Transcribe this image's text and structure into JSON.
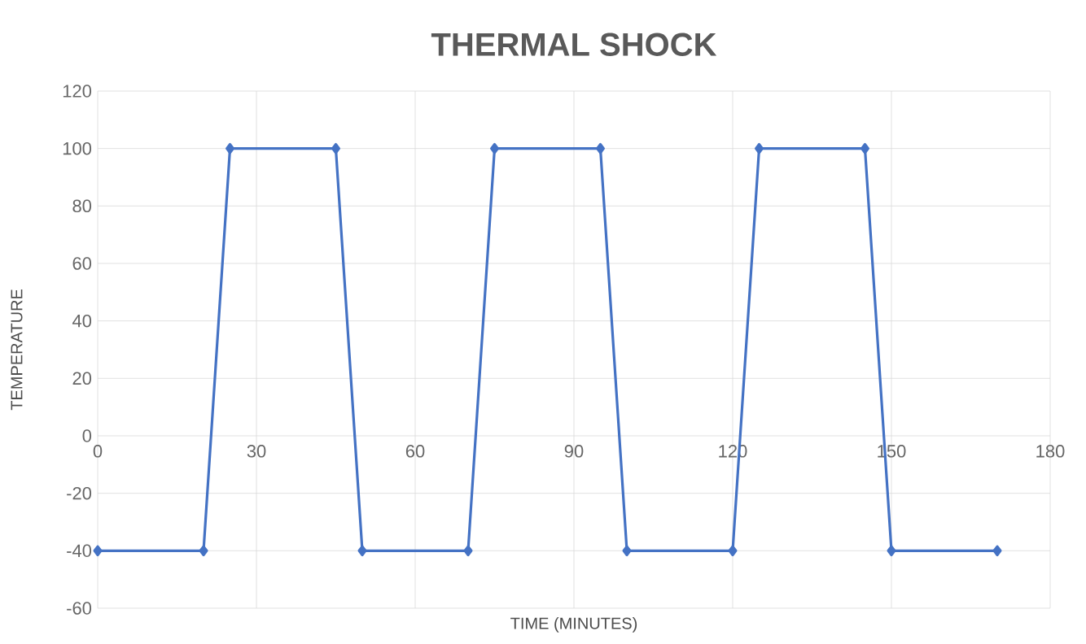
{
  "chart_data": {
    "type": "line",
    "title": "THERMAL SHOCK",
    "xlabel": "TIME (MINUTES)",
    "ylabel": "TEMPERATURE",
    "x": [
      0,
      20,
      25,
      45,
      50,
      70,
      75,
      95,
      100,
      120,
      125,
      145,
      150,
      170
    ],
    "series": [
      {
        "color": "#4472c4",
        "values": [
          -40,
          -40,
          100,
          100,
          -40,
          -40,
          100,
          100,
          -40,
          -40,
          100,
          100,
          -40,
          -40
        ]
      }
    ],
    "xlim": [
      0,
      180
    ],
    "xticks": [
      0,
      30,
      60,
      90,
      120,
      150,
      180
    ],
    "ylim": [
      -60,
      120
    ],
    "yticks": [
      -60,
      -40,
      -20,
      0,
      20,
      40,
      60,
      80,
      100,
      120
    ],
    "grid": true,
    "marker": "diamond",
    "line_style": "solid"
  }
}
